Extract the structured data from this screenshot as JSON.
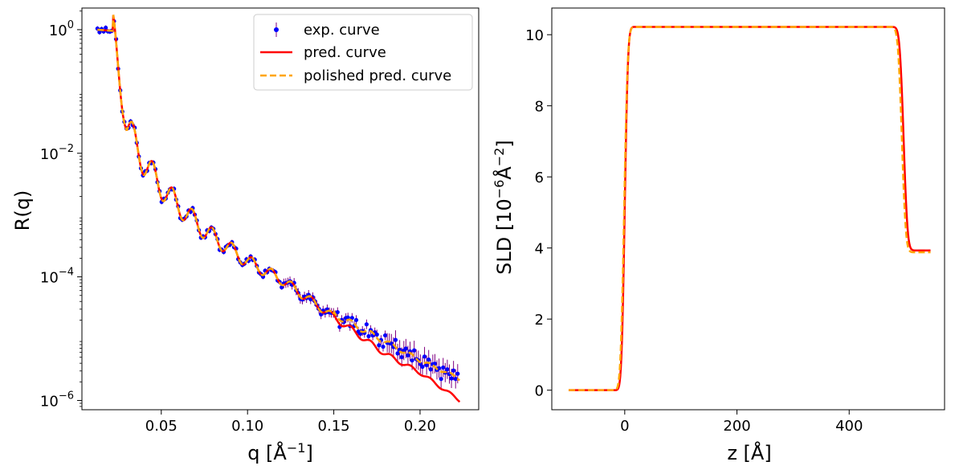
{
  "chart_data": [
    {
      "type": "scatter",
      "title": "",
      "xlabel": "q [Å^{-1}]",
      "ylabel": "R(q)",
      "xlim": [
        0.004,
        0.234
      ],
      "ylim_log10": [
        -6.15,
        0.35
      ],
      "yscale": "log",
      "grid": false,
      "legend_position": "top-right",
      "xticks": [
        {
          "v": 0.05,
          "label": "0.05"
        },
        {
          "v": 0.1,
          "label": "0.10"
        },
        {
          "v": 0.15,
          "label": "0.15"
        },
        {
          "v": 0.2,
          "label": "0.20"
        }
      ],
      "yticks": [
        {
          "exp": 0,
          "base": "10",
          "sup": "0"
        },
        {
          "exp": -2,
          "base": "10",
          "sup": "−2"
        },
        {
          "exp": -4,
          "base": "10",
          "sup": "−4"
        },
        {
          "exp": -6,
          "base": "10",
          "sup": "−6"
        }
      ],
      "series": [
        {
          "name": "exp. curve",
          "style": "errorbar-markers",
          "color": "#0000ff",
          "errorbar_color": "#800080"
        },
        {
          "name": "pred. curve",
          "style": "solid-line",
          "color": "#ff0000"
        },
        {
          "name": "polished pred. curve",
          "style": "dashed-line",
          "color": "#ffa500"
        }
      ],
      "curve_model": {
        "q_start": 0.013,
        "q_end": 0.223,
        "critical_q": 0.022,
        "plateau_log10": 0.0,
        "fringe_period_q": 0.0115,
        "fringe_amplitude_log10": 0.28,
        "decay_log10": [
          {
            "q": 0.022,
            "log10R": 0.0
          },
          {
            "q": 0.03,
            "log10R": -1.55
          },
          {
            "q": 0.04,
            "log10R": -2.15
          },
          {
            "q": 0.05,
            "log10R": -2.55
          },
          {
            "q": 0.06,
            "log10R": -2.85
          },
          {
            "q": 0.075,
            "log10R": -3.25
          },
          {
            "q": 0.09,
            "log10R": -3.55
          },
          {
            "q": 0.1,
            "log10R": -3.75
          },
          {
            "q": 0.12,
            "log10R": -4.05
          },
          {
            "q": 0.15,
            "log10R": -4.65
          },
          {
            "q": 0.18,
            "log10R": -5.25
          },
          {
            "q": 0.2,
            "log10R": -5.55
          },
          {
            "q": 0.223,
            "log10R": -6.0
          }
        ],
        "polished_tail_log10": [
          {
            "q": 0.15,
            "log10R": -4.6
          },
          {
            "q": 0.2,
            "log10R": -5.35
          },
          {
            "q": 0.223,
            "log10R": -5.65
          }
        ]
      }
    },
    {
      "type": "line",
      "title": "",
      "xlabel": "z [Å]",
      "ylabel": "SLD [10^{-6}Å^{-2}]",
      "xlim": [
        -130,
        570
      ],
      "ylim": [
        -0.55,
        10.75
      ],
      "grid": false,
      "xticks": [
        {
          "v": 0,
          "label": "0"
        },
        {
          "v": 200,
          "label": "200"
        },
        {
          "v": 400,
          "label": "400"
        }
      ],
      "yticks": [
        {
          "v": 0,
          "label": "0"
        },
        {
          "v": 2,
          "label": "2"
        },
        {
          "v": 4,
          "label": "4"
        },
        {
          "v": 6,
          "label": "6"
        },
        {
          "v": 8,
          "label": "8"
        },
        {
          "v": 10,
          "label": "10"
        }
      ],
      "series": [
        {
          "name": "pred. curve",
          "color": "#ff0000",
          "style": "solid",
          "profile": {
            "z_min": -100,
            "z_max": 545,
            "substrate": 0.0,
            "layer": 10.22,
            "ambient": 3.93,
            "interface1_z": 0,
            "interface1_width": 4.5,
            "interface2_z": 497,
            "interface2_width": 5.5
          }
        },
        {
          "name": "polished pred. curve",
          "color": "#ffa500",
          "style": "dashed",
          "profile": {
            "z_min": -100,
            "z_max": 545,
            "substrate": 0.0,
            "layer": 10.22,
            "ambient": 3.88,
            "interface1_z": -1,
            "interface1_width": 5.0,
            "interface2_z": 494,
            "interface2_width": 5.5
          }
        }
      ]
    }
  ]
}
